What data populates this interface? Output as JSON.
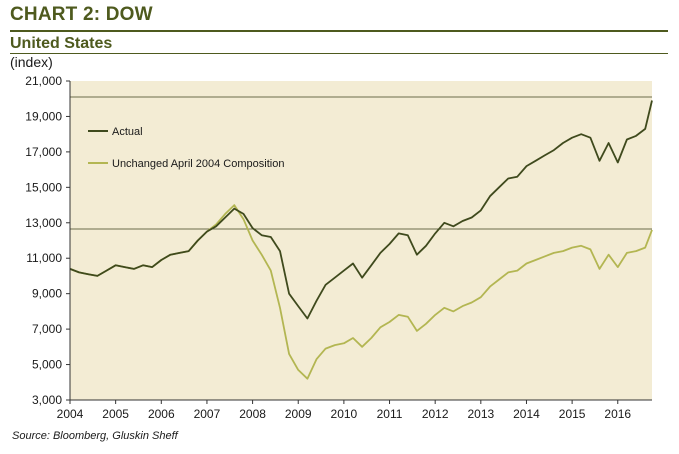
{
  "header": {
    "title": "CHART 2: DOW",
    "subtitle": "United States",
    "unit": "(index)"
  },
  "source": "Source: Bloomberg, Gluskin Sheff",
  "colors": {
    "plot_bg": "#f3ecd4",
    "actual": "#3f4a1d",
    "unchanged": "#b3b652",
    "ref_line": "#6b6b4a",
    "accent": "#4e5a1e"
  },
  "chart_data": {
    "type": "line",
    "title": "CHART 2: DOW",
    "subtitle": "United States",
    "ylabel": "(index)",
    "xlabel": "",
    "xlim": [
      2004,
      2016.75
    ],
    "ylim": [
      3000,
      21000
    ],
    "x_ticks": [
      2004,
      2005,
      2006,
      2007,
      2008,
      2009,
      2010,
      2011,
      2012,
      2013,
      2014,
      2015,
      2016
    ],
    "x_tick_labels": [
      "2004",
      "2005",
      "2006",
      "2007",
      "2008",
      "2009",
      "2010",
      "2011",
      "2012",
      "2013",
      "2014",
      "2015",
      "2016"
    ],
    "y_ticks": [
      3000,
      5000,
      7000,
      9000,
      11000,
      13000,
      15000,
      17000,
      19000,
      21000
    ],
    "y_tick_labels": [
      "3,000",
      "5,000",
      "7,000",
      "9,000",
      "11,000",
      "13,000",
      "15,000",
      "17,000",
      "19,000",
      "21,000"
    ],
    "reference_lines": [
      20100,
      12650
    ],
    "legend_position": "top-left",
    "series": [
      {
        "name": "Actual",
        "x": [
          2004.0,
          2004.2,
          2004.4,
          2004.6,
          2004.8,
          2005.0,
          2005.2,
          2005.4,
          2005.6,
          2005.8,
          2006.0,
          2006.2,
          2006.4,
          2006.6,
          2006.8,
          2007.0,
          2007.2,
          2007.4,
          2007.6,
          2007.8,
          2008.0,
          2008.2,
          2008.4,
          2008.6,
          2008.8,
          2009.0,
          2009.2,
          2009.4,
          2009.6,
          2009.8,
          2010.0,
          2010.2,
          2010.4,
          2010.6,
          2010.8,
          2011.0,
          2011.2,
          2011.4,
          2011.6,
          2011.8,
          2012.0,
          2012.2,
          2012.4,
          2012.6,
          2012.8,
          2013.0,
          2013.2,
          2013.4,
          2013.6,
          2013.8,
          2014.0,
          2014.2,
          2014.4,
          2014.6,
          2014.8,
          2015.0,
          2015.2,
          2015.4,
          2015.6,
          2015.8,
          2016.0,
          2016.2,
          2016.4,
          2016.6,
          2016.75
        ],
        "values": [
          10400,
          10200,
          10100,
          10000,
          10300,
          10600,
          10500,
          10400,
          10600,
          10500,
          10900,
          11200,
          11300,
          11400,
          12000,
          12500,
          12800,
          13300,
          13800,
          13500,
          12700,
          12300,
          12200,
          11400,
          9000,
          8300,
          7600,
          8600,
          9500,
          9900,
          10300,
          10700,
          9900,
          10600,
          11300,
          11800,
          12400,
          12300,
          11200,
          11700,
          12400,
          13000,
          12800,
          13100,
          13300,
          13700,
          14500,
          15000,
          15500,
          15600,
          16200,
          16500,
          16800,
          17100,
          17500,
          17800,
          18000,
          17800,
          16500,
          17500,
          16400,
          17700,
          17900,
          18300,
          19900
        ]
      },
      {
        "name": "Unchanged April 2004 Composition",
        "x": [
          2004.0,
          2004.2,
          2004.4,
          2004.6,
          2004.8,
          2005.0,
          2005.2,
          2005.4,
          2005.6,
          2005.8,
          2006.0,
          2006.2,
          2006.4,
          2006.6,
          2006.8,
          2007.0,
          2007.2,
          2007.4,
          2007.6,
          2007.8,
          2008.0,
          2008.2,
          2008.4,
          2008.6,
          2008.8,
          2009.0,
          2009.2,
          2009.4,
          2009.6,
          2009.8,
          2010.0,
          2010.2,
          2010.4,
          2010.6,
          2010.8,
          2011.0,
          2011.2,
          2011.4,
          2011.6,
          2011.8,
          2012.0,
          2012.2,
          2012.4,
          2012.6,
          2012.8,
          2013.0,
          2013.2,
          2013.4,
          2013.6,
          2013.8,
          2014.0,
          2014.2,
          2014.4,
          2014.6,
          2014.8,
          2015.0,
          2015.2,
          2015.4,
          2015.6,
          2015.8,
          2016.0,
          2016.2,
          2016.4,
          2016.6,
          2016.75
        ],
        "values": [
          10400,
          10200,
          10100,
          10000,
          10300,
          10600,
          10500,
          10400,
          10600,
          10500,
          10900,
          11200,
          11300,
          11400,
          12000,
          12500,
          12900,
          13500,
          14000,
          13200,
          12000,
          11200,
          10300,
          8200,
          5600,
          4700,
          4200,
          5300,
          5900,
          6100,
          6200,
          6500,
          6000,
          6500,
          7100,
          7400,
          7800,
          7700,
          6900,
          7300,
          7800,
          8200,
          8000,
          8300,
          8500,
          8800,
          9400,
          9800,
          10200,
          10300,
          10700,
          10900,
          11100,
          11300,
          11400,
          11600,
          11700,
          11500,
          10400,
          11200,
          10500,
          11300,
          11400,
          11600,
          12600
        ]
      }
    ]
  }
}
